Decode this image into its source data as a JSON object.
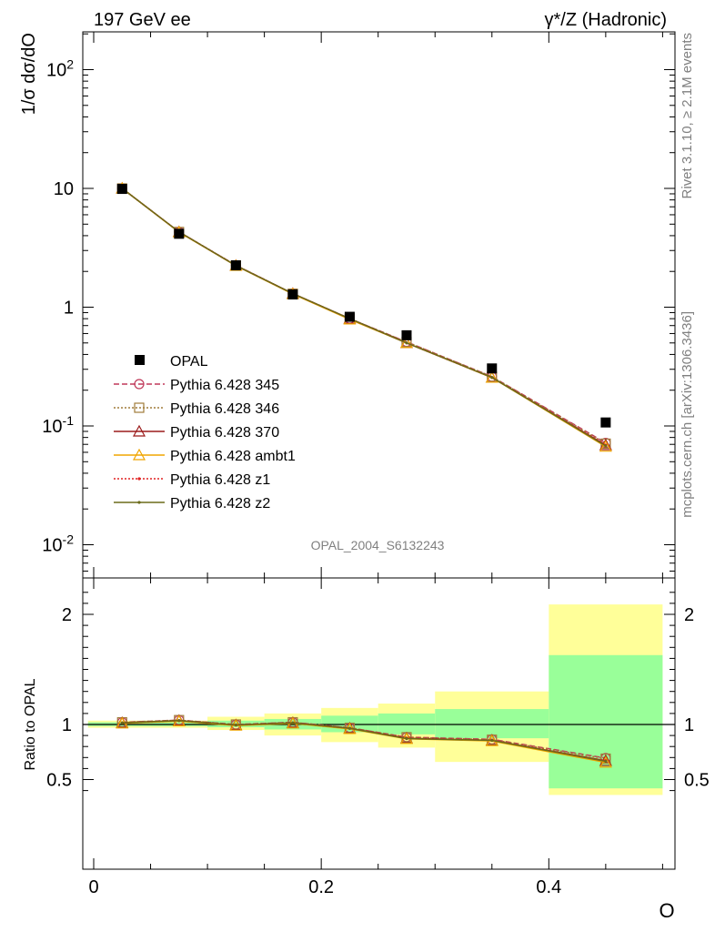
{
  "header": {
    "left_title": "197 GeV ee",
    "right_title_sup": "γ*/Z (Hadronic)"
  },
  "side": {
    "rivet": "Rivet 3.1.10, ≥ 2.1M events",
    "mcplots": "mcplots.cern.ch [arXiv:1306.3436]"
  },
  "analysis_label": "OPAL_2004_S6132243",
  "chart_data": [
    {
      "type": "line",
      "panel": "main",
      "ylabel": "1/σ dσ/dO",
      "yscale": "log",
      "ylim": [
        0.005,
        200
      ],
      "xlim": [
        -0.01,
        0.5
      ],
      "ytick_labels": [
        "10-2",
        "10-1",
        "1",
        "10",
        "102"
      ],
      "x": [
        0.025,
        0.075,
        0.125,
        0.175,
        0.225,
        0.275,
        0.35,
        0.45
      ],
      "data": {
        "name": "OPAL",
        "values": [
          9.9,
          4.15,
          2.25,
          1.28,
          0.83,
          0.58,
          0.305,
          0.107
        ]
      },
      "series": [
        {
          "name": "Pythia 6.428 345",
          "color": "#c0395a",
          "style": "dashed",
          "marker": "circle-open",
          "values": [
            10.0,
            4.3,
            2.25,
            1.3,
            0.8,
            0.51,
            0.26,
            0.072
          ]
        },
        {
          "name": "Pythia 6.428 346",
          "color": "#a07c3a",
          "style": "dotted",
          "marker": "square-open",
          "values": [
            10.0,
            4.3,
            2.25,
            1.3,
            0.8,
            0.51,
            0.26,
            0.071
          ]
        },
        {
          "name": "Pythia 6.428 370",
          "color": "#9b1b1b",
          "style": "solid",
          "marker": "triangle-open",
          "values": [
            10.0,
            4.3,
            2.24,
            1.3,
            0.8,
            0.5,
            0.255,
            0.069
          ]
        },
        {
          "name": "Pythia 6.428 ambt1",
          "color": "#f0a500",
          "style": "solid",
          "marker": "triangle-open",
          "values": [
            10.0,
            4.28,
            2.23,
            1.29,
            0.79,
            0.5,
            0.255,
            0.067
          ]
        },
        {
          "name": "Pythia 6.428 z1",
          "color": "#e02020",
          "style": "dotted",
          "marker": "dot",
          "values": [
            10.0,
            4.3,
            2.24,
            1.3,
            0.8,
            0.5,
            0.256,
            0.069
          ]
        },
        {
          "name": "Pythia 6.428 z2",
          "color": "#6b6b1a",
          "style": "solid",
          "marker": "dot",
          "values": [
            10.0,
            4.3,
            2.24,
            1.3,
            0.8,
            0.5,
            0.256,
            0.068
          ]
        }
      ]
    },
    {
      "type": "line",
      "panel": "ratio",
      "ylabel": "Ratio to OPAL",
      "xlabel": "O",
      "ylim": [
        0.35,
        2.3
      ],
      "yticks": [
        0.5,
        1,
        2
      ],
      "ytick_labels": [
        "0.5",
        "1",
        "2"
      ],
      "xticks": [
        0,
        0.2,
        0.4
      ],
      "xtick_labels": [
        "0",
        "0.2",
        "0.4"
      ],
      "bands": [
        {
          "x0": -0.005,
          "x1": 0.05,
          "green": [
            0.985,
            1.02
          ],
          "yellow": [
            0.97,
            1.035
          ]
        },
        {
          "x0": 0.05,
          "x1": 0.1,
          "green": [
            0.985,
            1.02
          ],
          "yellow": [
            0.97,
            1.035
          ]
        },
        {
          "x0": 0.1,
          "x1": 0.15,
          "green": [
            0.975,
            1.035
          ],
          "yellow": [
            0.95,
            1.07
          ]
        },
        {
          "x0": 0.15,
          "x1": 0.2,
          "green": [
            0.955,
            1.05
          ],
          "yellow": [
            0.9,
            1.1
          ]
        },
        {
          "x0": 0.2,
          "x1": 0.25,
          "green": [
            0.93,
            1.08
          ],
          "yellow": [
            0.84,
            1.15
          ]
        },
        {
          "x0": 0.25,
          "x1": 0.3,
          "green": [
            0.91,
            1.1
          ],
          "yellow": [
            0.79,
            1.19
          ]
        },
        {
          "x0": 0.3,
          "x1": 0.4,
          "green": [
            0.875,
            1.14
          ],
          "yellow": [
            0.66,
            1.3
          ]
        },
        {
          "x0": 0.4,
          "x1": 0.5,
          "green": [
            0.42,
            1.63
          ],
          "yellow": [
            0.36,
            2.09
          ]
        }
      ],
      "series": [
        {
          "name": "Pythia 6.428 345",
          "color": "#c0395a",
          "style": "dashed",
          "marker": "circle-open",
          "values": [
            1.02,
            1.04,
            1.0,
            1.02,
            0.97,
            0.885,
            0.865,
            0.695
          ]
        },
        {
          "name": "Pythia 6.428 346",
          "color": "#a07c3a",
          "style": "dotted",
          "marker": "square-open",
          "values": [
            1.02,
            1.04,
            1.0,
            1.02,
            0.97,
            0.885,
            0.862,
            0.69
          ]
        },
        {
          "name": "Pythia 6.428 370",
          "color": "#9b1b1b",
          "style": "solid",
          "marker": "triangle-open",
          "values": [
            1.015,
            1.035,
            0.995,
            1.015,
            0.965,
            0.875,
            0.855,
            0.67
          ]
        },
        {
          "name": "Pythia 6.428 ambt1",
          "color": "#f0a500",
          "style": "solid",
          "marker": "triangle-open",
          "values": [
            1.01,
            1.03,
            0.99,
            1.01,
            0.96,
            0.87,
            0.85,
            0.655
          ]
        },
        {
          "name": "Pythia 6.428 z1",
          "color": "#e02020",
          "style": "dotted",
          "marker": "dot",
          "values": [
            1.015,
            1.035,
            0.995,
            1.015,
            0.965,
            0.875,
            0.857,
            0.672
          ]
        },
        {
          "name": "Pythia 6.428 z2",
          "color": "#6b6b1a",
          "style": "solid",
          "marker": "dot",
          "values": [
            1.015,
            1.035,
            0.995,
            1.015,
            0.965,
            0.872,
            0.855,
            0.665
          ]
        }
      ]
    }
  ]
}
